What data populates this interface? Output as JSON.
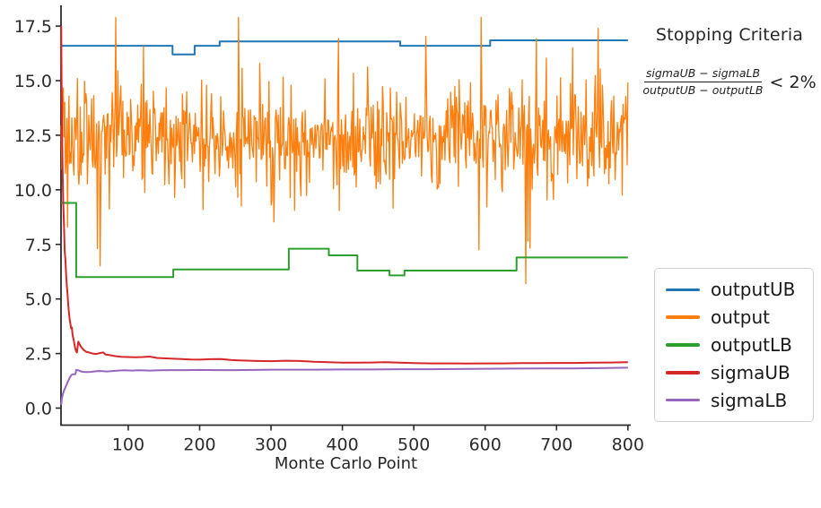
{
  "annotation": {
    "title": "Stopping Criteria",
    "numerator": "sigmaUB − sigmaLB",
    "denominator": "outputUB − outputLB",
    "rhs": "< 2%"
  },
  "legend": {
    "items": [
      {
        "label": "outputUB",
        "color": "#1f77b4"
      },
      {
        "label": "output",
        "color": "#ff7f0e"
      },
      {
        "label": "outputLB",
        "color": "#2ca02c"
      },
      {
        "label": "sigmaUB",
        "color": "#d62728"
      },
      {
        "label": "sigmaLB",
        "color": "#9467bd"
      }
    ]
  },
  "chart_data": {
    "type": "line",
    "title": "",
    "xlabel": "Monte Carlo Point",
    "ylabel": "",
    "xlim": [
      5.8,
      804
    ],
    "ylim": [
      -0.78,
      18.45
    ],
    "x_ticks": [
      100,
      200,
      300,
      400,
      500,
      600,
      700,
      800
    ],
    "y_ticks": [
      0,
      2.5,
      5,
      7.5,
      10,
      12.5,
      15,
      17.5
    ],
    "y_tick_labels": [
      "0.0",
      "2.5",
      "5.0",
      "7.5",
      "10.0",
      "12.5",
      "15.0",
      "17.5"
    ],
    "grid": false,
    "legend_position": "outside lower right",
    "axis_color": "#2b2b2b",
    "tick_color": "#2b2b2b",
    "series": [
      {
        "name": "outputUB",
        "color": "#1f77b4",
        "style": "steps",
        "width": 2,
        "points": [
          [
            6,
            16.6
          ],
          [
            162,
            16.6
          ],
          [
            162,
            16.2
          ],
          [
            193,
            16.2
          ],
          [
            193,
            16.6
          ],
          [
            228,
            16.6
          ],
          [
            228,
            16.8
          ],
          [
            481,
            16.8
          ],
          [
            481,
            16.6
          ],
          [
            607,
            16.6
          ],
          [
            607,
            16.85
          ],
          [
            800,
            16.85
          ]
        ]
      },
      {
        "name": "output",
        "color": "#ff7f0e",
        "style": "noise",
        "width": 1.3,
        "n": 800,
        "seed": 12345,
        "x_start": 6,
        "x_end": 800,
        "mean": 12.3,
        "spread": 7.2,
        "up_prob": 0.03,
        "down_prob": 0.025,
        "spike_base": 2.2,
        "spike_var": 3.0,
        "min": 5.7,
        "max": 17.9,
        "description": "Noisy Monte Carlo output oscillating around ~12.3, dense band ~9–15.5, occasional spikes down to ~5.7 and up to ~17.9"
      },
      {
        "name": "outputLB",
        "color": "#2ca02c",
        "style": "steps",
        "width": 2,
        "points": [
          [
            6,
            9.4
          ],
          [
            27,
            9.4
          ],
          [
            27,
            6.0
          ],
          [
            163,
            6.0
          ],
          [
            163,
            6.35
          ],
          [
            325,
            6.35
          ],
          [
            325,
            7.3
          ],
          [
            381,
            7.3
          ],
          [
            381,
            7.0
          ],
          [
            421,
            7.0
          ],
          [
            421,
            6.3
          ],
          [
            466,
            6.3
          ],
          [
            466,
            6.08
          ],
          [
            487,
            6.08
          ],
          [
            487,
            6.3
          ],
          [
            644,
            6.3
          ],
          [
            644,
            6.9
          ],
          [
            800,
            6.9
          ]
        ]
      },
      {
        "name": "sigmaUB",
        "color": "#d62728",
        "style": "line",
        "width": 2,
        "points": [
          [
            6,
            17.5
          ],
          [
            6.5,
            15.2
          ],
          [
            7,
            13.2
          ],
          [
            8,
            10.8
          ],
          [
            9,
            9.4
          ],
          [
            10,
            8.4
          ],
          [
            11,
            7.2
          ],
          [
            12,
            6.8
          ],
          [
            13,
            6.1
          ],
          [
            14,
            5.6
          ],
          [
            15,
            5.2
          ],
          [
            16,
            4.7
          ],
          [
            17,
            4.35
          ],
          [
            18,
            4.05
          ],
          [
            19,
            3.85
          ],
          [
            20,
            3.65
          ],
          [
            21,
            3.7
          ],
          [
            22,
            3.35
          ],
          [
            23,
            3.2
          ],
          [
            24,
            3.05
          ],
          [
            25,
            2.85
          ],
          [
            26,
            2.7
          ],
          [
            27,
            2.6
          ],
          [
            28,
            2.55
          ],
          [
            29,
            2.8
          ],
          [
            30,
            3.05
          ],
          [
            31,
            2.98
          ],
          [
            32,
            2.92
          ],
          [
            34,
            2.8
          ],
          [
            36,
            2.72
          ],
          [
            38,
            2.65
          ],
          [
            41,
            2.58
          ],
          [
            45,
            2.55
          ],
          [
            50,
            2.5
          ],
          [
            55,
            2.48
          ],
          [
            60,
            2.52
          ],
          [
            65,
            2.55
          ],
          [
            68,
            2.46
          ],
          [
            75,
            2.42
          ],
          [
            82,
            2.38
          ],
          [
            90,
            2.35
          ],
          [
            100,
            2.34
          ],
          [
            110,
            2.33
          ],
          [
            120,
            2.34
          ],
          [
            130,
            2.36
          ],
          [
            140,
            2.3
          ],
          [
            150,
            2.28
          ],
          [
            163,
            2.26
          ],
          [
            175,
            2.25
          ],
          [
            188,
            2.23
          ],
          [
            200,
            2.22
          ],
          [
            215,
            2.24
          ],
          [
            230,
            2.25
          ],
          [
            245,
            2.2
          ],
          [
            260,
            2.18
          ],
          [
            280,
            2.16
          ],
          [
            300,
            2.15
          ],
          [
            320,
            2.17
          ],
          [
            340,
            2.16
          ],
          [
            360,
            2.12
          ],
          [
            380,
            2.1
          ],
          [
            400,
            2.08
          ],
          [
            420,
            2.08
          ],
          [
            440,
            2.09
          ],
          [
            460,
            2.1
          ],
          [
            480,
            2.08
          ],
          [
            500,
            2.06
          ],
          [
            525,
            2.05
          ],
          [
            550,
            2.05
          ],
          [
            575,
            2.04
          ],
          [
            600,
            2.05
          ],
          [
            625,
            2.05
          ],
          [
            650,
            2.06
          ],
          [
            675,
            2.06
          ],
          [
            700,
            2.07
          ],
          [
            725,
            2.07
          ],
          [
            750,
            2.08
          ],
          [
            775,
            2.09
          ],
          [
            800,
            2.1
          ]
        ]
      },
      {
        "name": "sigmaLB",
        "color": "#9467bd",
        "style": "line",
        "width": 2,
        "points": [
          [
            6,
            0.15
          ],
          [
            7,
            0.45
          ],
          [
            8,
            0.6
          ],
          [
            9,
            0.7
          ],
          [
            10,
            0.8
          ],
          [
            11,
            0.88
          ],
          [
            12,
            0.95
          ],
          [
            13,
            1.03
          ],
          [
            14,
            1.1
          ],
          [
            15,
            1.18
          ],
          [
            16,
            1.25
          ],
          [
            17,
            1.32
          ],
          [
            18,
            1.4
          ],
          [
            19,
            1.45
          ],
          [
            20,
            1.5
          ],
          [
            21,
            1.53
          ],
          [
            23,
            1.55
          ],
          [
            25,
            1.55
          ],
          [
            26,
            1.56
          ],
          [
            27,
            1.75
          ],
          [
            29,
            1.74
          ],
          [
            31,
            1.72
          ],
          [
            34,
            1.68
          ],
          [
            38,
            1.66
          ],
          [
            42,
            1.65
          ],
          [
            47,
            1.66
          ],
          [
            52,
            1.68
          ],
          [
            58,
            1.7
          ],
          [
            64,
            1.69
          ],
          [
            70,
            1.68
          ],
          [
            78,
            1.7
          ],
          [
            86,
            1.72
          ],
          [
            95,
            1.73
          ],
          [
            105,
            1.72
          ],
          [
            115,
            1.73
          ],
          [
            130,
            1.72
          ],
          [
            145,
            1.73
          ],
          [
            160,
            1.74
          ],
          [
            180,
            1.74
          ],
          [
            200,
            1.75
          ],
          [
            225,
            1.74
          ],
          [
            250,
            1.74
          ],
          [
            275,
            1.75
          ],
          [
            300,
            1.76
          ],
          [
            330,
            1.76
          ],
          [
            360,
            1.76
          ],
          [
            400,
            1.77
          ],
          [
            440,
            1.77
          ],
          [
            480,
            1.78
          ],
          [
            520,
            1.78
          ],
          [
            560,
            1.79
          ],
          [
            600,
            1.8
          ],
          [
            640,
            1.81
          ],
          [
            680,
            1.82
          ],
          [
            720,
            1.82
          ],
          [
            760,
            1.83
          ],
          [
            800,
            1.85
          ]
        ]
      }
    ]
  }
}
